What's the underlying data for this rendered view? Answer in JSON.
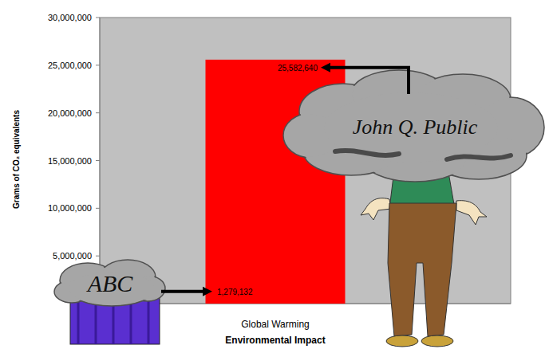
{
  "chart_data": {
    "type": "bar",
    "categories": [
      "Global Warming"
    ],
    "values": [
      25582640
    ],
    "color": "#ff0000",
    "x_label": "Environmental Impact",
    "y_label": "Grams of CO₂ equivalents",
    "ylim": [
      0,
      30000000
    ],
    "yticks": [
      {
        "value": 5000000,
        "label": "5,000,000"
      },
      {
        "value": 10000000,
        "label": "10,000,000"
      },
      {
        "value": 15000000,
        "label": "15,000,000"
      },
      {
        "value": 20000000,
        "label": "20,000,000"
      },
      {
        "value": 25000000,
        "label": "25,000,000"
      },
      {
        "value": 30000000,
        "label": "30,000,000"
      }
    ],
    "grid": false,
    "annotations": [
      {
        "text": "John Q. Public",
        "value": 25582640,
        "label": "25,582,640"
      },
      {
        "text": "ABC",
        "value": 1279132,
        "label": "1,279,132"
      }
    ]
  }
}
